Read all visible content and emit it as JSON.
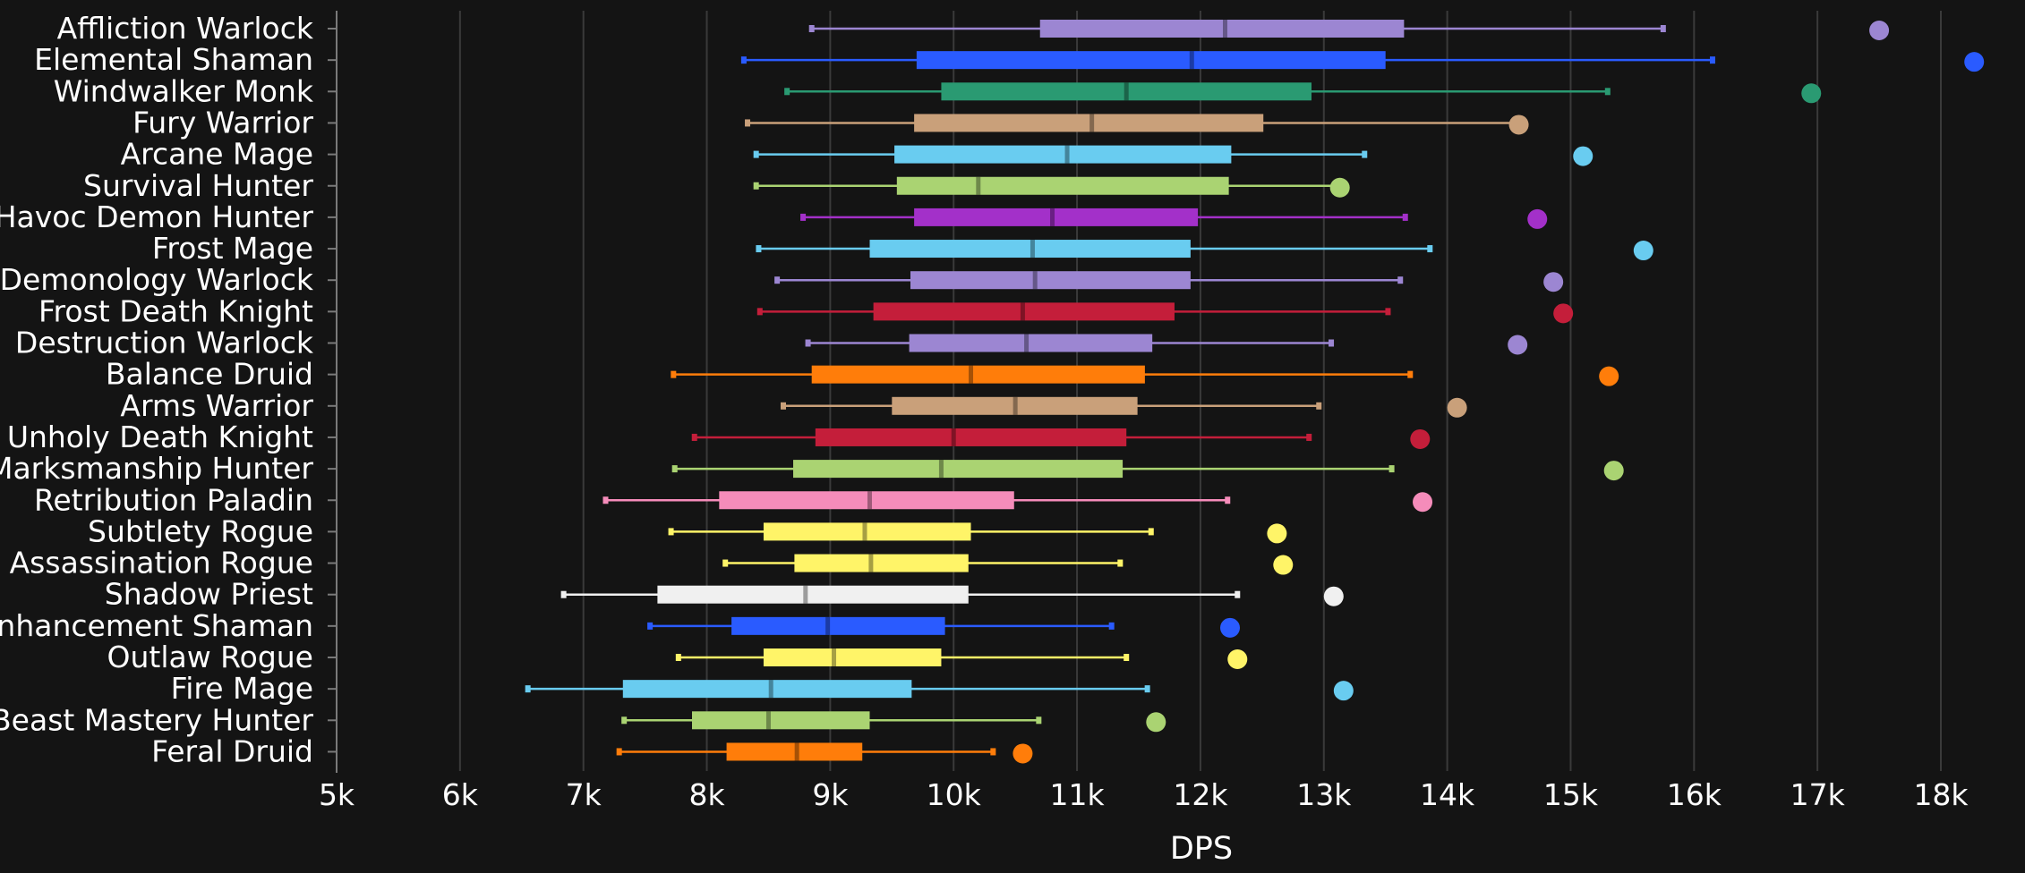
{
  "chart_data": {
    "type": "boxplot",
    "title": "",
    "xlabel": "DPS",
    "ylabel": "",
    "xlim": [
      5000,
      18500
    ],
    "x_ticks": [
      5000,
      6000,
      7000,
      8000,
      9000,
      10000,
      11000,
      12000,
      13000,
      14000,
      15000,
      16000,
      17000,
      18000
    ],
    "x_tick_labels": [
      "5k",
      "6k",
      "7k",
      "8k",
      "9k",
      "10k",
      "11k",
      "12k",
      "13k",
      "14k",
      "15k",
      "16k",
      "17k",
      "18k"
    ],
    "grid": "vertical",
    "legend": "none",
    "series": [
      {
        "name": "Affliction Warlock",
        "color": "#9c86d2",
        "whisker_low": 8850,
        "q1": 10700,
        "median": 12200,
        "q3": 13650,
        "whisker_high": 15750,
        "outlier": 17500
      },
      {
        "name": "Elemental Shaman",
        "color": "#2a5bff",
        "whisker_low": 8300,
        "q1": 9700,
        "median": 11930,
        "q3": 13500,
        "whisker_high": 16150,
        "outlier": 18270
      },
      {
        "name": "Windwalker Monk",
        "color": "#2a9a72",
        "whisker_low": 8650,
        "q1": 9900,
        "median": 11400,
        "q3": 12900,
        "whisker_high": 15300,
        "outlier": 16950
      },
      {
        "name": "Fury Warrior",
        "color": "#c9a07a",
        "whisker_low": 8330,
        "q1": 9680,
        "median": 11120,
        "q3": 12510,
        "whisker_high": 14580,
        "outlier": 14580
      },
      {
        "name": "Arcane Mage",
        "color": "#69ccf0",
        "whisker_low": 8400,
        "q1": 9520,
        "median": 10920,
        "q3": 12250,
        "whisker_high": 13330,
        "outlier": 15100
      },
      {
        "name": "Survival Hunter",
        "color": "#aad372",
        "whisker_low": 8400,
        "q1": 9540,
        "median": 10200,
        "q3": 12230,
        "whisker_high": 13130,
        "outlier": 13130
      },
      {
        "name": "Havoc Demon Hunter",
        "color": "#a330c9",
        "whisker_low": 8780,
        "q1": 9680,
        "median": 10800,
        "q3": 11980,
        "whisker_high": 13660,
        "outlier": 14730
      },
      {
        "name": "Frost Mage",
        "color": "#69ccf0",
        "whisker_low": 8420,
        "q1": 9320,
        "median": 10640,
        "q3": 11920,
        "whisker_high": 13860,
        "outlier": 15590
      },
      {
        "name": "Demonology Warlock",
        "color": "#9c86d2",
        "whisker_low": 8570,
        "q1": 9650,
        "median": 10660,
        "q3": 11920,
        "whisker_high": 13620,
        "outlier": 14860
      },
      {
        "name": "Frost Death Knight",
        "color": "#c41e3a",
        "whisker_low": 8430,
        "q1": 9350,
        "median": 10560,
        "q3": 11790,
        "whisker_high": 13520,
        "outlier": 14940
      },
      {
        "name": "Destruction Warlock",
        "color": "#9c86d2",
        "whisker_low": 8820,
        "q1": 9640,
        "median": 10590,
        "q3": 11610,
        "whisker_high": 13060,
        "outlier": 14570
      },
      {
        "name": "Balance Druid",
        "color": "#ff7d0a",
        "whisker_low": 7730,
        "q1": 8850,
        "median": 10140,
        "q3": 11550,
        "whisker_high": 13700,
        "outlier": 15310
      },
      {
        "name": "Arms Warrior",
        "color": "#c9a07a",
        "whisker_low": 8620,
        "q1": 9500,
        "median": 10500,
        "q3": 11490,
        "whisker_high": 12960,
        "outlier": 14080
      },
      {
        "name": "Unholy Death Knight",
        "color": "#c41e3a",
        "whisker_low": 7900,
        "q1": 8880,
        "median": 10000,
        "q3": 11400,
        "whisker_high": 12880,
        "outlier": 13780
      },
      {
        "name": "Marksmanship Hunter",
        "color": "#aad372",
        "whisker_low": 7740,
        "q1": 8700,
        "median": 9900,
        "q3": 11370,
        "whisker_high": 13550,
        "outlier": 15350
      },
      {
        "name": "Retribution Paladin",
        "color": "#f58cba",
        "whisker_low": 7180,
        "q1": 8100,
        "median": 9320,
        "q3": 10490,
        "whisker_high": 12220,
        "outlier": 13800
      },
      {
        "name": "Subtlety Rogue",
        "color": "#fff468",
        "whisker_low": 7710,
        "q1": 8460,
        "median": 9280,
        "q3": 10140,
        "whisker_high": 11600,
        "outlier": 12620
      },
      {
        "name": "Assassination Rogue",
        "color": "#fff468",
        "whisker_low": 8150,
        "q1": 8710,
        "median": 9330,
        "q3": 10120,
        "whisker_high": 11350,
        "outlier": 12670
      },
      {
        "name": "Shadow Priest",
        "color": "#f0f0f0",
        "whisker_low": 6840,
        "q1": 7600,
        "median": 8800,
        "q3": 10120,
        "whisker_high": 12300,
        "outlier": 13080
      },
      {
        "name": "Enhancement Shaman",
        "color": "#2a5bff",
        "whisker_low": 7540,
        "q1": 8200,
        "median": 8980,
        "q3": 9930,
        "whisker_high": 11280,
        "outlier": 12240
      },
      {
        "name": "Outlaw Rogue",
        "color": "#fff468",
        "whisker_low": 7770,
        "q1": 8460,
        "median": 9030,
        "q3": 9900,
        "whisker_high": 11400,
        "outlier": 12300
      },
      {
        "name": "Fire Mage",
        "color": "#69ccf0",
        "whisker_low": 6550,
        "q1": 7320,
        "median": 8520,
        "q3": 9660,
        "whisker_high": 11570,
        "outlier": 13160
      },
      {
        "name": "Beast Mastery Hunter",
        "color": "#aad372",
        "whisker_low": 7330,
        "q1": 7880,
        "median": 8500,
        "q3": 9320,
        "whisker_high": 10690,
        "outlier": 11640
      },
      {
        "name": "Feral Druid",
        "color": "#ff7d0a",
        "whisker_low": 7290,
        "q1": 8160,
        "median": 8730,
        "q3": 9260,
        "whisker_high": 10320,
        "outlier": 10560
      }
    ]
  }
}
